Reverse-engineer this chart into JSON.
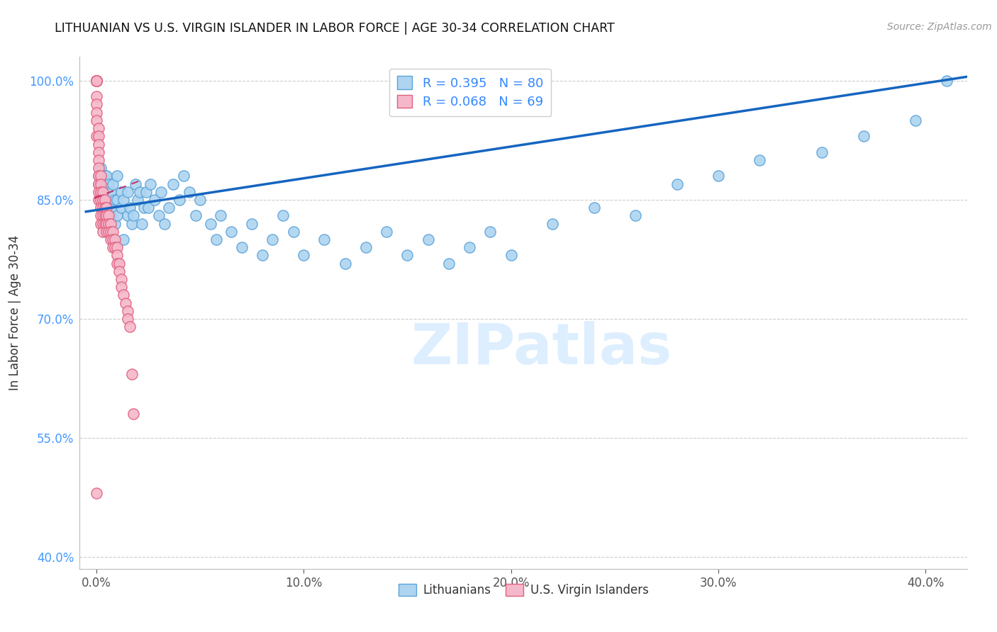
{
  "title": "LITHUANIAN VS U.S. VIRGIN ISLANDER IN LABOR FORCE | AGE 30-34 CORRELATION CHART",
  "source": "Source: ZipAtlas.com",
  "ylabel": "In Labor Force | Age 30-34",
  "ylabel_ticks": [
    "40.0%",
    "55.0%",
    "70.0%",
    "85.0%",
    "100.0%"
  ],
  "xlabel_ticks": [
    "0.0%",
    "10.0%",
    "20.0%",
    "30.0%",
    "40.0%"
  ],
  "xlim": [
    -0.008,
    0.42
  ],
  "ylim": [
    0.385,
    1.03
  ],
  "ytick_vals": [
    0.4,
    0.55,
    0.7,
    0.85,
    1.0
  ],
  "xtick_vals": [
    0.0,
    0.1,
    0.2,
    0.3,
    0.4
  ],
  "R_blue": 0.395,
  "N_blue": 80,
  "R_pink": 0.068,
  "N_pink": 69,
  "blue_color": "#add4f0",
  "blue_edge": "#5ba3d9",
  "pink_color": "#f5b8cb",
  "pink_edge": "#e0607e",
  "trend_blue": "#1565c0",
  "trend_pink": "#c2185b",
  "watermark_color": "#ddeeff",
  "legend_labels": [
    "Lithuanians",
    "U.S. Virgin Islanders"
  ],
  "blue_scatter_x": [
    0.001,
    0.001,
    0.002,
    0.003,
    0.003,
    0.004,
    0.004,
    0.005,
    0.005,
    0.005,
    0.006,
    0.006,
    0.007,
    0.007,
    0.008,
    0.008,
    0.009,
    0.009,
    0.01,
    0.01,
    0.01,
    0.012,
    0.012,
    0.013,
    0.013,
    0.015,
    0.015,
    0.016,
    0.017,
    0.018,
    0.019,
    0.02,
    0.021,
    0.022,
    0.023,
    0.024,
    0.025,
    0.026,
    0.028,
    0.03,
    0.031,
    0.033,
    0.035,
    0.037,
    0.04,
    0.042,
    0.045,
    0.048,
    0.05,
    0.055,
    0.058,
    0.06,
    0.065,
    0.07,
    0.075,
    0.08,
    0.085,
    0.09,
    0.095,
    0.1,
    0.11,
    0.12,
    0.13,
    0.14,
    0.15,
    0.16,
    0.17,
    0.18,
    0.19,
    0.2,
    0.22,
    0.24,
    0.26,
    0.28,
    0.3,
    0.32,
    0.35,
    0.37,
    0.395,
    0.41
  ],
  "blue_scatter_y": [
    0.87,
    0.88,
    0.89,
    0.86,
    0.87,
    0.85,
    0.88,
    0.84,
    0.86,
    0.88,
    0.85,
    0.87,
    0.83,
    0.86,
    0.84,
    0.87,
    0.82,
    0.85,
    0.83,
    0.85,
    0.88,
    0.84,
    0.86,
    0.8,
    0.85,
    0.83,
    0.86,
    0.84,
    0.82,
    0.83,
    0.87,
    0.85,
    0.86,
    0.82,
    0.84,
    0.86,
    0.84,
    0.87,
    0.85,
    0.83,
    0.86,
    0.82,
    0.84,
    0.87,
    0.85,
    0.88,
    0.86,
    0.83,
    0.85,
    0.82,
    0.8,
    0.83,
    0.81,
    0.79,
    0.82,
    0.78,
    0.8,
    0.83,
    0.81,
    0.78,
    0.8,
    0.77,
    0.79,
    0.81,
    0.78,
    0.8,
    0.77,
    0.79,
    0.81,
    0.78,
    0.82,
    0.84,
    0.83,
    0.87,
    0.88,
    0.9,
    0.91,
    0.93,
    0.95,
    1.0
  ],
  "pink_scatter_x": [
    0.0,
    0.0,
    0.0,
    0.0,
    0.0,
    0.0,
    0.0,
    0.0,
    0.0,
    0.0,
    0.0,
    0.0,
    0.001,
    0.001,
    0.001,
    0.001,
    0.001,
    0.001,
    0.001,
    0.001,
    0.001,
    0.001,
    0.002,
    0.002,
    0.002,
    0.002,
    0.002,
    0.002,
    0.002,
    0.003,
    0.003,
    0.003,
    0.003,
    0.003,
    0.003,
    0.004,
    0.004,
    0.004,
    0.004,
    0.005,
    0.005,
    0.005,
    0.005,
    0.006,
    0.006,
    0.006,
    0.007,
    0.007,
    0.007,
    0.008,
    0.008,
    0.008,
    0.009,
    0.009,
    0.01,
    0.01,
    0.01,
    0.011,
    0.011,
    0.012,
    0.012,
    0.013,
    0.014,
    0.015,
    0.015,
    0.016,
    0.017,
    0.018,
    0.0
  ],
  "pink_scatter_y": [
    1.0,
    1.0,
    1.0,
    1.0,
    1.0,
    1.0,
    1.0,
    0.98,
    0.97,
    0.96,
    0.95,
    0.93,
    0.94,
    0.93,
    0.92,
    0.91,
    0.9,
    0.89,
    0.88,
    0.87,
    0.86,
    0.85,
    0.88,
    0.87,
    0.86,
    0.85,
    0.84,
    0.83,
    0.82,
    0.86,
    0.85,
    0.84,
    0.83,
    0.82,
    0.81,
    0.85,
    0.84,
    0.83,
    0.82,
    0.84,
    0.83,
    0.82,
    0.81,
    0.83,
    0.82,
    0.81,
    0.82,
    0.81,
    0.8,
    0.81,
    0.8,
    0.79,
    0.8,
    0.79,
    0.79,
    0.78,
    0.77,
    0.77,
    0.76,
    0.75,
    0.74,
    0.73,
    0.72,
    0.71,
    0.7,
    0.69,
    0.63,
    0.58,
    0.48
  ]
}
